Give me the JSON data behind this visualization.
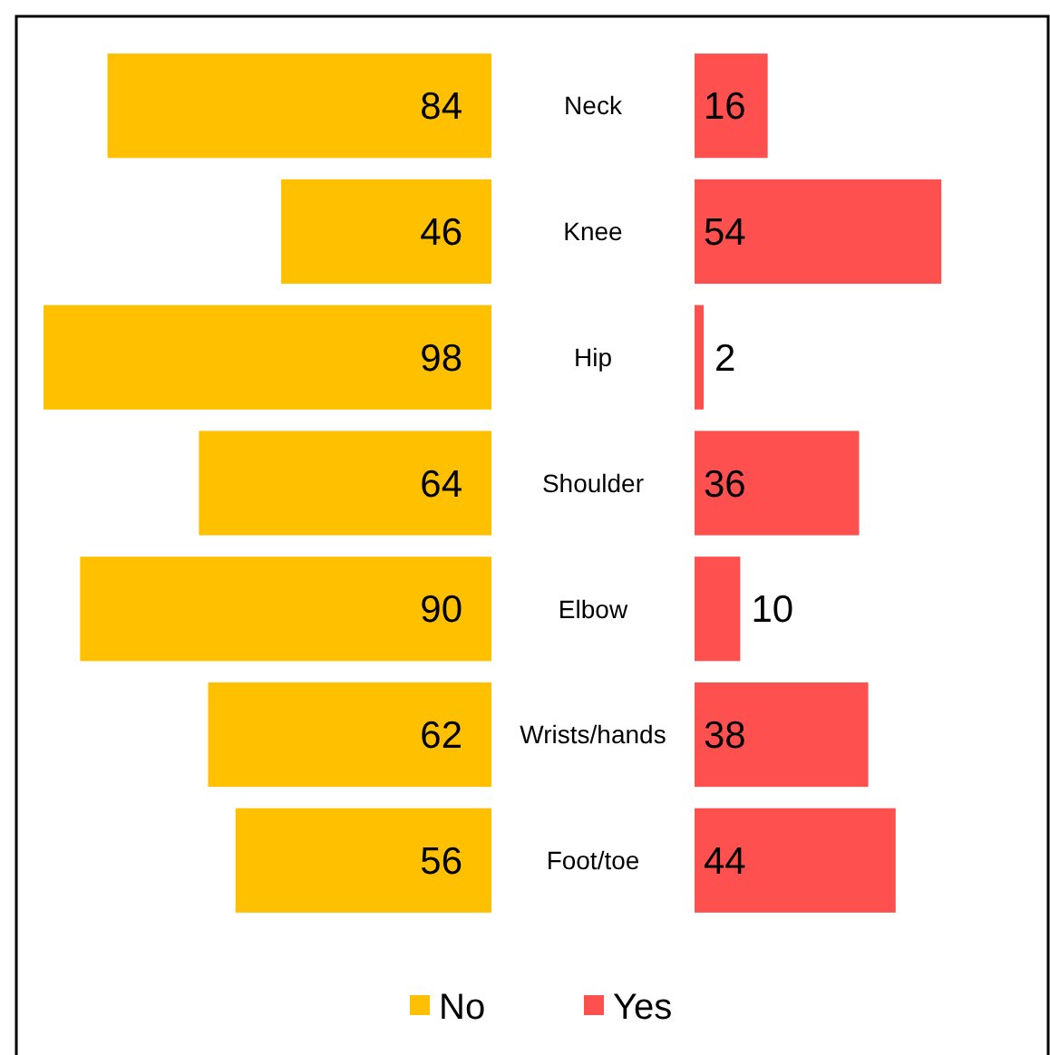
{
  "chart_data": [
    {
      "type": "bar",
      "orientation": "horizontal",
      "categories": [
        "Neck",
        "Knee",
        "Hip",
        "Shoulder",
        "Elbow",
        "Wrists/hands",
        "Foot/toe"
      ],
      "series": [
        {
          "name": "No",
          "color": "#ffc000",
          "values": [
            84,
            46,
            98,
            64,
            90,
            62,
            56
          ]
        }
      ],
      "data_labels": true,
      "legend": "bottom"
    },
    {
      "type": "bar",
      "orientation": "horizontal",
      "categories": [
        null,
        null,
        null,
        null,
        null,
        null,
        null
      ],
      "tick_labels": false,
      "series": [
        {
          "name": "Yes",
          "color": "#ff5050",
          "values": [
            16,
            54,
            2,
            36,
            10,
            38,
            44
          ]
        }
      ],
      "data_labels": true,
      "legend": "bottom"
    }
  ]
}
